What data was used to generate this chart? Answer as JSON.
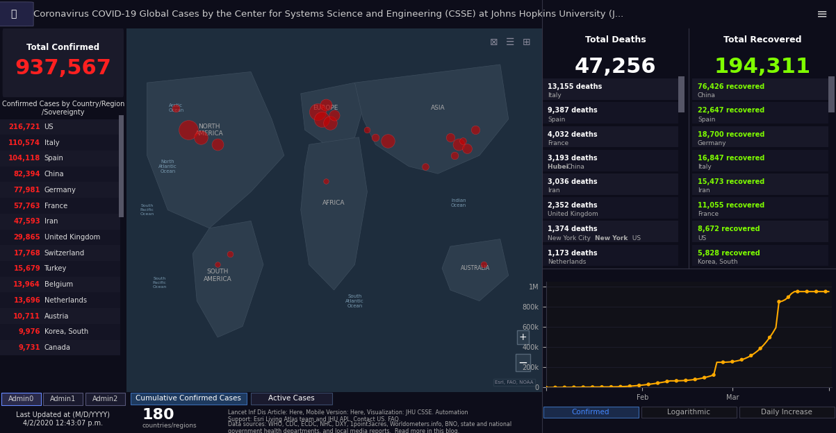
{
  "title": "Coronavirus COVID-19 Global Cases by the Center for Systems Science and Engineering (CSSE) at Johns Hopkins University (J...   ≡",
  "bg_color": "#1a1a2e",
  "header_bg": "#1c1c2e",
  "panel_bg": "#1e1e2e",
  "dark_bg": "#111122",
  "total_confirmed": "937,567",
  "total_deaths": "47,256",
  "total_recovered": "194,311",
  "confirmed_color": "#ff2222",
  "deaths_color": "#ffffff",
  "recovered_color": "#7fff00",
  "confirmed_label": "Total Confirmed",
  "deaths_label": "Total Deaths",
  "recovered_label": "Total Recovered",
  "confirmed_cases_title": "Confirmed Cases by Country/Region\n/Sovereignty",
  "confirmed_list": [
    [
      "216,721",
      "US"
    ],
    [
      "110,574",
      "Italy"
    ],
    [
      "104,118",
      "Spain"
    ],
    [
      "82,394",
      "China"
    ],
    [
      "77,981",
      "Germany"
    ],
    [
      "57,763",
      "France"
    ],
    [
      "47,593",
      "Iran"
    ],
    [
      "29,865",
      "United Kingdom"
    ],
    [
      "17,768",
      "Switzerland"
    ],
    [
      "15,679",
      "Turkey"
    ],
    [
      "13,964",
      "Belgium"
    ],
    [
      "13,696",
      "Netherlands"
    ],
    [
      "10,711",
      "Austria"
    ],
    [
      "9,976",
      "Korea, South"
    ],
    [
      "9,731",
      "Canada"
    ]
  ],
  "deaths_list": [
    [
      "13,155 deaths",
      "Italy"
    ],
    [
      "9,387 deaths",
      "Spain"
    ],
    [
      "4,032 deaths",
      "France"
    ],
    [
      "3,193 deaths",
      "Hubei China"
    ],
    [
      "3,036 deaths",
      "Iran"
    ],
    [
      "2,352 deaths",
      "United Kingdom"
    ],
    [
      "1,374 deaths",
      "New York City New York US"
    ],
    [
      "1,173 deaths",
      "Netherlands"
    ]
  ],
  "recovered_list": [
    [
      "76,426 recovered",
      "China"
    ],
    [
      "22,647 recovered",
      "Spain"
    ],
    [
      "18,700 recovered",
      "Germany"
    ],
    [
      "16,847 recovered",
      "Italy"
    ],
    [
      "15,473 recovered",
      "Iran"
    ],
    [
      "11,055 recovered",
      "France"
    ],
    [
      "8,672 recovered",
      "US"
    ],
    [
      "5,828 recovered",
      "Korea, South"
    ]
  ],
  "tabs": [
    "Admin0",
    "Admin1",
    "Admin2"
  ],
  "active_tab": "Admin0",
  "last_updated": "Last Updated at (M/D/YYYY)\n4/2/2020 12:43:07 p.m.",
  "chart_tabs": [
    "Confirmed",
    "Logarithmic",
    "Daily Increase"
  ],
  "chart_active_tab": "Confirmed",
  "chart_yticks": [
    "0",
    "200k",
    "400k",
    "600k",
    "800k",
    "1M"
  ],
  "chart_xticks": [
    "",
    "Feb",
    "",
    "Mar",
    ""
  ],
  "countries_count": "180",
  "footer_text": "Lancet Inf Dis Article: Here, Mobile Version: Here, Visualization: JHU CSSE. Automation\nSupport: Esri Living Atlas team and JHU APL. Contact US. FAQ.\nData sources: WHO, CDC, ECDC, NHC, DXY, 1point3acres, Worldometers.info, BNO, state and national\ngovernment health departments, and local media reports.  Read more in this blog.",
  "map_bg": "#2d3a4a",
  "chart_line_color": "#ffaa00",
  "chart_dot_color": "#ffaa00",
  "chart_bg": "#111118",
  "sidebar_bg": "#111118"
}
